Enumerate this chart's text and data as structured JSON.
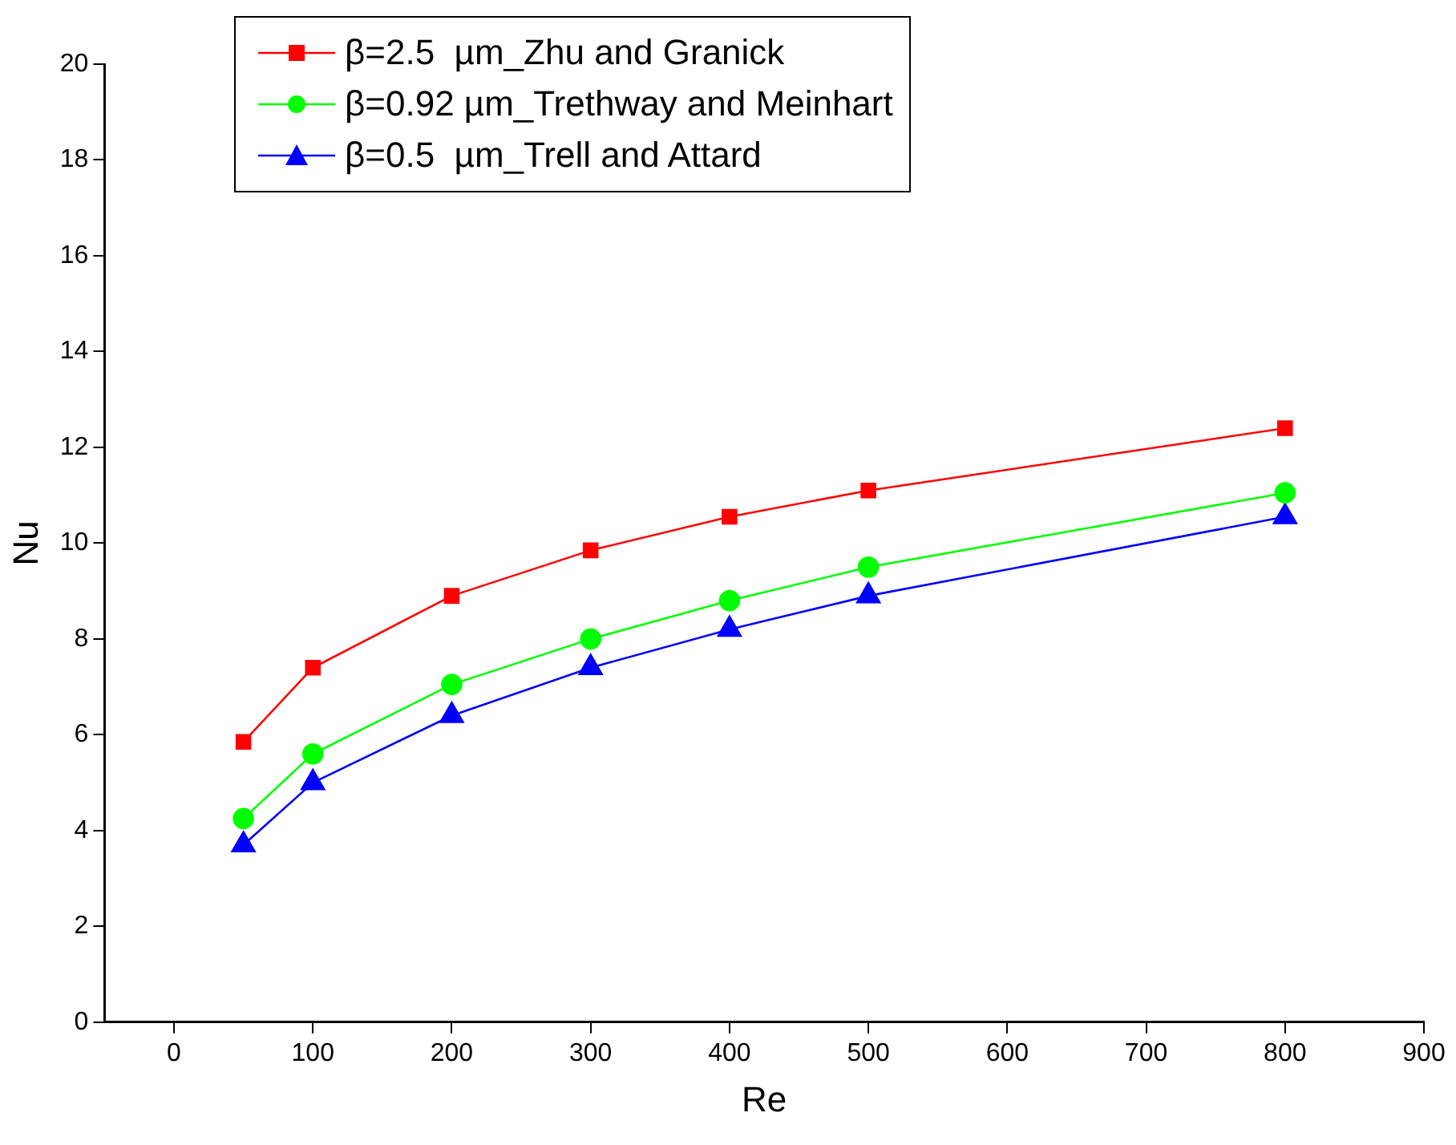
{
  "chart_data": {
    "type": "line",
    "xlabel": "Re",
    "ylabel": "Nu",
    "xlim": [
      -50,
      900
    ],
    "xticks": [
      0,
      100,
      200,
      300,
      400,
      500,
      600,
      700,
      800,
      900
    ],
    "ylim": [
      0,
      20
    ],
    "yticks": [
      0,
      2,
      4,
      6,
      8,
      10,
      12,
      14,
      16,
      18,
      20
    ],
    "grid": false,
    "legend": "top",
    "x": [
      50,
      100,
      200,
      300,
      400,
      500,
      800
    ],
    "series": [
      {
        "name": "β=2.5  µm_Zhu and Granick",
        "color": "#ff0000",
        "marker": "square",
        "values": [
          5.85,
          7.4,
          8.9,
          9.85,
          10.55,
          11.1,
          12.4
        ]
      },
      {
        "name": "β=0.92 µm_Trethway and Meinhart",
        "color": "#00ff00",
        "marker": "circle",
        "values": [
          4.25,
          5.6,
          7.05,
          8.0,
          8.8,
          9.5,
          11.05
        ]
      },
      {
        "name": "β=0.5  µm_Trell and Attard",
        "color": "#0000ff",
        "marker": "triangle",
        "values": [
          3.7,
          5.0,
          6.4,
          7.4,
          8.2,
          8.9,
          10.55
        ]
      }
    ]
  }
}
